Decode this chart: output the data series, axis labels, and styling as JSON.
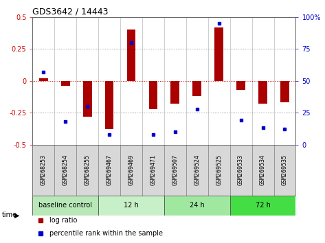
{
  "title": "GDS3642 / 14443",
  "samples": [
    "GSM268253",
    "GSM268254",
    "GSM268255",
    "GSM269467",
    "GSM269469",
    "GSM269471",
    "GSM269507",
    "GSM269524",
    "GSM269525",
    "GSM269533",
    "GSM269534",
    "GSM269535"
  ],
  "log_ratio": [
    0.02,
    -0.04,
    -0.28,
    -0.38,
    0.4,
    -0.22,
    -0.18,
    -0.12,
    0.42,
    -0.07,
    -0.18,
    -0.17
  ],
  "percentile_rank": [
    57,
    18,
    30,
    8,
    80,
    8,
    10,
    28,
    95,
    19,
    13,
    12
  ],
  "group_info": [
    {
      "label": "baseline control",
      "start": 0,
      "end": 3,
      "color": "#b8e8b8"
    },
    {
      "label": "12 h",
      "start": 3,
      "end": 6,
      "color": "#c8f0c8"
    },
    {
      "label": "24 h",
      "start": 6,
      "end": 9,
      "color": "#a0e8a0"
    },
    {
      "label": "72 h",
      "start": 9,
      "end": 12,
      "color": "#44dd44"
    }
  ],
  "ylim": [
    -0.5,
    0.5
  ],
  "yticks_left": [
    -0.5,
    -0.25,
    0,
    0.25,
    0.5
  ],
  "yticks_right_labels": [
    "0",
    "25",
    "50",
    "75",
    "100%"
  ],
  "bar_color": "#AA0000",
  "dot_color": "#0000CC",
  "bg_color": "#ffffff",
  "title_fontsize": 9,
  "tick_fontsize": 7,
  "label_fontsize": 6,
  "group_fontsize": 7,
  "legend_fontsize": 7
}
